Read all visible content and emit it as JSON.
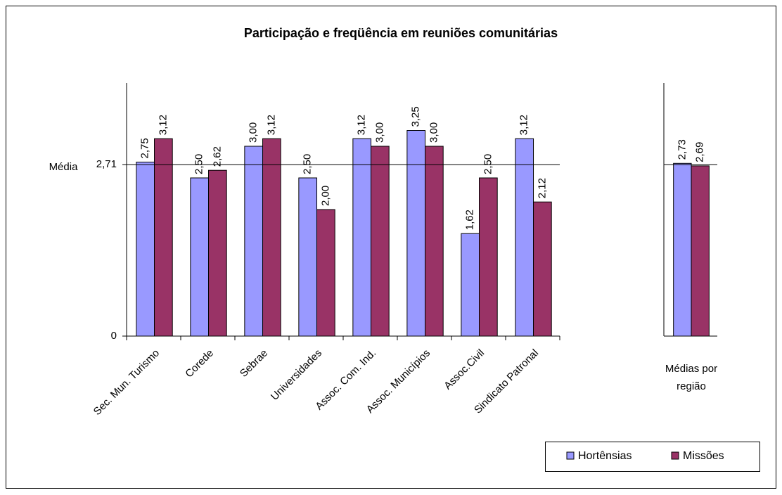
{
  "chart_data": [
    {
      "type": "bar",
      "title": "Participação e freqüência em reuniões comunitárias",
      "categories": [
        "Sec. Mun. Turismo",
        "Corede",
        "Sebrae",
        "Universidades",
        "Assoc. Com. Ind.",
        "Assoc. Municípios",
        "Assoc.Civil",
        "Sindicato Patronal"
      ],
      "series": [
        {
          "name": "Hortênsias",
          "color": "#9999ff",
          "values": [
            2.75,
            2.5,
            3.0,
            2.5,
            3.12,
            3.25,
            1.62,
            3.12
          ],
          "value_labels": [
            "2,75",
            "2,50",
            "3,00",
            "2,50",
            "3,12",
            "3,25",
            "1,62",
            "3,12"
          ]
        },
        {
          "name": "Missões",
          "color": "#993366",
          "values": [
            3.12,
            2.62,
            3.12,
            2.0,
            3.0,
            3.0,
            2.5,
            2.12
          ],
          "value_labels": [
            "3,12",
            "2,62",
            "3,12",
            "2,00",
            "3,00",
            "3,00",
            "2,50",
            "2,12"
          ]
        }
      ],
      "ylim": [
        0,
        4
      ],
      "yticks": [
        0,
        {
          "value": 2.71,
          "label": "2,71"
        }
      ],
      "reference_line": {
        "label": "Média",
        "value": 2.71
      },
      "legend": "bottom-right"
    },
    {
      "type": "bar",
      "categories": [
        "Médias por região"
      ],
      "series": [
        {
          "color": "#9999ff",
          "values": [
            2.73
          ],
          "value_labels": [
            "2,73"
          ]
        },
        {
          "color": "#993366",
          "values": [
            2.69
          ],
          "value_labels": [
            "2,69"
          ]
        }
      ],
      "ylim": [
        0,
        4
      ],
      "reference_line": {
        "value": 2.71
      }
    }
  ]
}
